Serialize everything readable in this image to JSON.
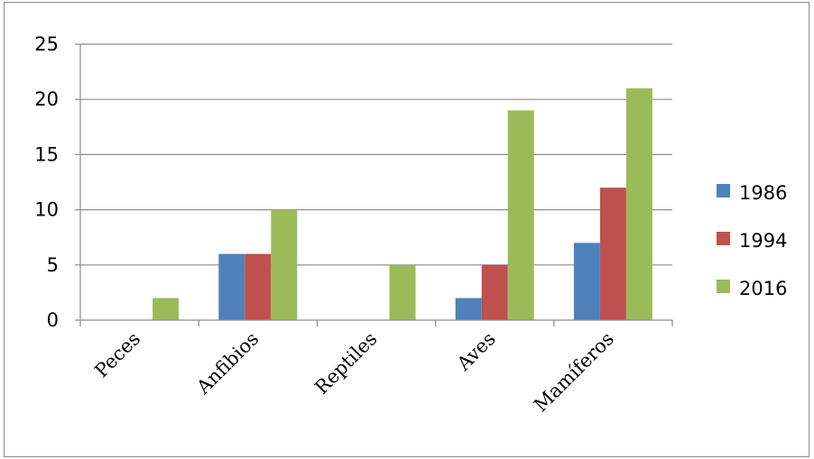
{
  "chart_data": {
    "type": "bar",
    "categories": [
      "Peces",
      "Anfibios",
      "Reptiles",
      "Aves",
      "Mamíferos"
    ],
    "series": [
      {
        "name": "1986",
        "values": [
          0,
          6,
          0,
          2,
          7
        ],
        "color": "#4f81bd"
      },
      {
        "name": "1994",
        "values": [
          0,
          6,
          0,
          5,
          12
        ],
        "color": "#c0504d"
      },
      {
        "name": "2016",
        "values": [
          2,
          10,
          5,
          19,
          21
        ],
        "color": "#9bbb59"
      }
    ],
    "y_ticks": [
      "0",
      "5",
      "10",
      "15",
      "20",
      "25"
    ],
    "ylim": [
      0,
      25
    ],
    "grid": true,
    "legend_position": "right"
  }
}
